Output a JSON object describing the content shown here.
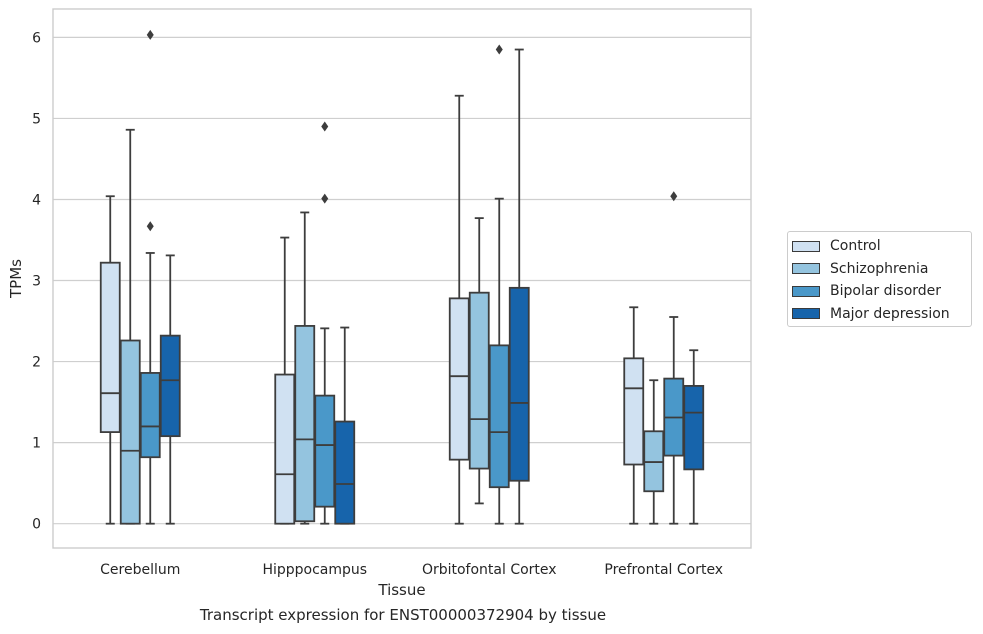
{
  "caption": "Transcript expression for ENST00000372904 by tissue",
  "chart_data": {
    "type": "box",
    "xlabel": "Tissue",
    "ylabel": "TPMs",
    "ylim": [
      -0.3,
      6.35
    ],
    "yticks": [
      0,
      1,
      2,
      3,
      4,
      5,
      6
    ],
    "grid": "horizontal",
    "legend_position": "right",
    "categories": [
      "Cerebellum",
      "Hipppocampus",
      "Orbitofontal Cortex",
      "Prefrontal Cortex"
    ],
    "series": [
      {
        "name": "Control",
        "color": "#d0e1f2",
        "boxes": [
          {
            "whisker_low": 0.0,
            "q1": 1.13,
            "median": 1.61,
            "q3": 3.22,
            "whisker_high": 4.04,
            "outliers": []
          },
          {
            "whisker_low": 0.0,
            "q1": 0.0,
            "median": 0.61,
            "q3": 1.84,
            "whisker_high": 3.53,
            "outliers": []
          },
          {
            "whisker_low": 0.0,
            "q1": 0.79,
            "median": 1.82,
            "q3": 2.78,
            "whisker_high": 5.28,
            "outliers": []
          },
          {
            "whisker_low": 0.0,
            "q1": 0.73,
            "median": 1.67,
            "q3": 2.04,
            "whisker_high": 2.67,
            "outliers": []
          }
        ]
      },
      {
        "name": "Schizophrenia",
        "color": "#94c4df",
        "boxes": [
          {
            "whisker_low": 0.0,
            "q1": 0.0,
            "median": 0.9,
            "q3": 2.26,
            "whisker_high": 4.86,
            "outliers": []
          },
          {
            "whisker_low": 0.0,
            "q1": 0.03,
            "median": 1.04,
            "q3": 2.44,
            "whisker_high": 3.84,
            "outliers": []
          },
          {
            "whisker_low": 0.25,
            "q1": 0.68,
            "median": 1.29,
            "q3": 2.85,
            "whisker_high": 3.77,
            "outliers": []
          },
          {
            "whisker_low": 0.0,
            "q1": 0.4,
            "median": 0.76,
            "q3": 1.14,
            "whisker_high": 1.77,
            "outliers": []
          }
        ]
      },
      {
        "name": "Bipolar disorder",
        "color": "#4a98c9",
        "boxes": [
          {
            "whisker_low": 0.0,
            "q1": 0.82,
            "median": 1.2,
            "q3": 1.86,
            "whisker_high": 3.34,
            "outliers": [
              3.67,
              6.03
            ]
          },
          {
            "whisker_low": 0.0,
            "q1": 0.21,
            "median": 0.97,
            "q3": 1.58,
            "whisker_high": 2.41,
            "outliers": [
              4.01,
              4.9
            ]
          },
          {
            "whisker_low": 0.0,
            "q1": 0.45,
            "median": 1.13,
            "q3": 2.2,
            "whisker_high": 4.01,
            "outliers": [
              5.85
            ]
          },
          {
            "whisker_low": 0.0,
            "q1": 0.84,
            "median": 1.31,
            "q3": 1.79,
            "whisker_high": 2.55,
            "outliers": [
              4.04
            ]
          }
        ]
      },
      {
        "name": "Major depression",
        "color": "#1764ab",
        "boxes": [
          {
            "whisker_low": 0.0,
            "q1": 1.08,
            "median": 1.77,
            "q3": 2.32,
            "whisker_high": 3.31,
            "outliers": []
          },
          {
            "whisker_low": 0.0,
            "q1": 0.0,
            "median": 0.49,
            "q3": 1.26,
            "whisker_high": 2.42,
            "outliers": []
          },
          {
            "whisker_low": 0.0,
            "q1": 0.53,
            "median": 1.49,
            "q3": 2.91,
            "whisker_high": 5.85,
            "outliers": []
          },
          {
            "whisker_low": 0.0,
            "q1": 0.67,
            "median": 1.37,
            "q3": 1.7,
            "whisker_high": 2.14,
            "outliers": []
          }
        ]
      }
    ]
  }
}
